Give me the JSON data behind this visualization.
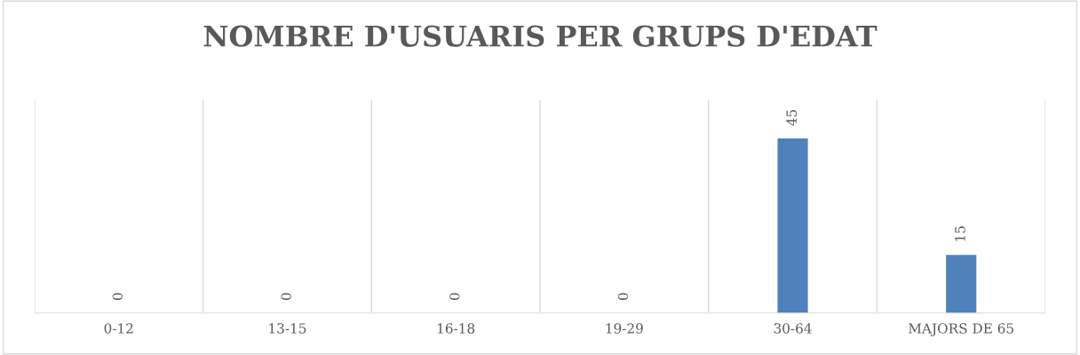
{
  "chart_data": {
    "type": "bar",
    "title": "NOMBRE D'USUARIS PER GRUPS D'EDAT",
    "categories": [
      "0-12",
      "13-15",
      "16-18",
      "19-29",
      "30-64",
      "MAJORS DE 65"
    ],
    "values": [
      0,
      0,
      0,
      0,
      45,
      15
    ],
    "color": "#4f81bd",
    "data_labels": true,
    "grid": "x",
    "tick_labels": "x"
  }
}
